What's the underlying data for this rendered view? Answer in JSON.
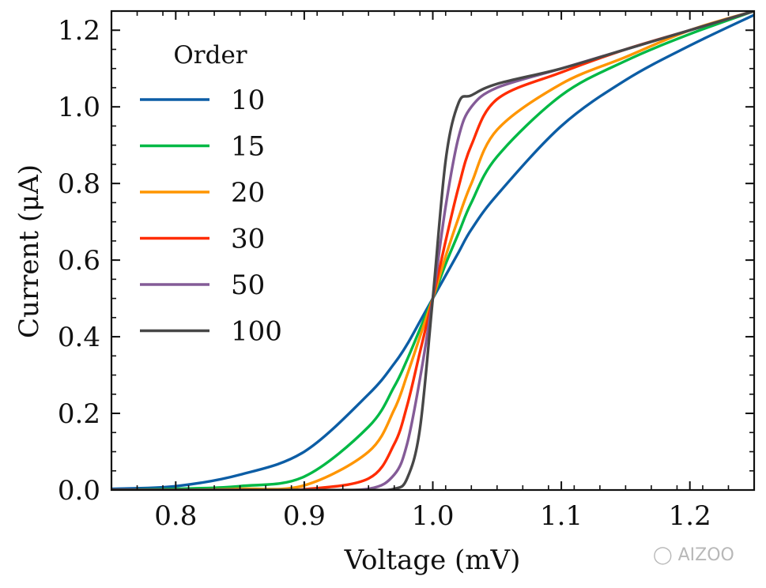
{
  "chart_data": {
    "type": "line",
    "xlabel": "Voltage (mV)",
    "ylabel": "Current (μA)",
    "xlim": [
      0.75,
      1.25
    ],
    "ylim": [
      0.0,
      1.25
    ],
    "xticks": [
      "0.8",
      "0.9",
      "1.0",
      "1.1",
      "1.2"
    ],
    "yticks": [
      "0.0",
      "0.2",
      "0.4",
      "0.6",
      "0.8",
      "1.0",
      "1.2"
    ],
    "legend_title": "Order",
    "legend_position": "upper-left",
    "grid": false,
    "x": [
      0.75,
      0.8,
      0.85,
      0.9,
      0.95,
      0.97,
      0.98,
      0.99,
      1.0,
      1.01,
      1.02,
      1.03,
      1.05,
      1.1,
      1.15,
      1.2,
      1.25
    ],
    "series": [
      {
        "name": "10",
        "color": "#0c5da5",
        "values": [
          0.003,
          0.01,
          0.04,
          0.1,
          0.25,
          0.33,
          0.38,
          0.44,
          0.5,
          0.56,
          0.62,
          0.68,
          0.77,
          0.95,
          1.07,
          1.16,
          1.24
        ]
      },
      {
        "name": "15",
        "color": "#00b945",
        "values": [
          0.0,
          0.003,
          0.01,
          0.035,
          0.165,
          0.27,
          0.34,
          0.42,
          0.5,
          0.59,
          0.67,
          0.75,
          0.87,
          1.03,
          1.12,
          1.19,
          1.25
        ]
      },
      {
        "name": "20",
        "color": "#ff9500",
        "values": [
          0.0,
          0.0,
          0.003,
          0.012,
          0.1,
          0.21,
          0.3,
          0.4,
          0.5,
          0.61,
          0.71,
          0.8,
          0.94,
          1.06,
          1.13,
          1.2,
          1.25
        ]
      },
      {
        "name": "30",
        "color": "#ff2c00",
        "values": [
          0.0,
          0.0,
          0.0,
          0.002,
          0.03,
          0.12,
          0.22,
          0.36,
          0.5,
          0.65,
          0.79,
          0.9,
          1.02,
          1.09,
          1.15,
          1.2,
          1.25
        ]
      },
      {
        "name": "50",
        "color": "#845b97",
        "values": [
          0.0,
          0.0,
          0.0,
          0.0,
          0.003,
          0.04,
          0.12,
          0.29,
          0.5,
          0.74,
          0.92,
          1.0,
          1.05,
          1.1,
          1.15,
          1.2,
          1.25
        ]
      },
      {
        "name": "100",
        "color": "#474747",
        "values": [
          0.0,
          0.0,
          0.0,
          0.0,
          0.0,
          0.003,
          0.03,
          0.16,
          0.5,
          0.86,
          1.01,
          1.03,
          1.06,
          1.1,
          1.15,
          1.2,
          1.25
        ]
      }
    ]
  },
  "watermark": {
    "text": "AIZOO"
  }
}
